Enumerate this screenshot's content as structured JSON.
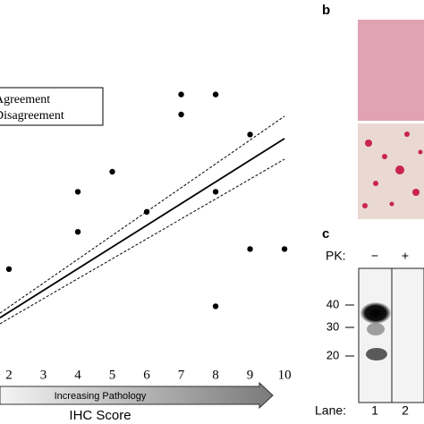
{
  "chart_data": {
    "type": "scatter",
    "xlabel": "IHC Score",
    "arrow_label": "Increasing Pathology",
    "legend_labels": [
      "Agreement",
      "Disagreement"
    ],
    "x": [
      2,
      4,
      4,
      5,
      6,
      7,
      7,
      8,
      8,
      8,
      9,
      9,
      10
    ],
    "y": [
      3.1,
      5.8,
      4.4,
      6.5,
      5.1,
      9.2,
      8.5,
      9.2,
      5.8,
      1.8,
      7.8,
      3.8,
      3.8
    ],
    "fit": {
      "x": [
        1.74,
        10
      ],
      "y": [
        1.4,
        7.66
      ]
    },
    "ci_upper": {
      "x": [
        1.74,
        10
      ],
      "y": [
        1.56,
        8.44
      ]
    },
    "ci_lower": {
      "x": [
        1.74,
        10
      ],
      "y": [
        1.19,
        6.94
      ]
    },
    "xlim": [
      1.74,
      10.31
    ],
    "ylim": [
      0,
      10
    ],
    "xticks": [
      2,
      3,
      4,
      5,
      6,
      7,
      8,
      9,
      10
    ],
    "color": "#000"
  },
  "panel_b": {
    "label": "b"
  },
  "panel_c": {
    "label": "c",
    "pk_label": "PK:",
    "pk_values": [
      "−",
      "+"
    ],
    "markers": [
      "40",
      "30",
      "20"
    ],
    "lane_label": "Lane:",
    "lanes": [
      "1",
      "2"
    ]
  }
}
